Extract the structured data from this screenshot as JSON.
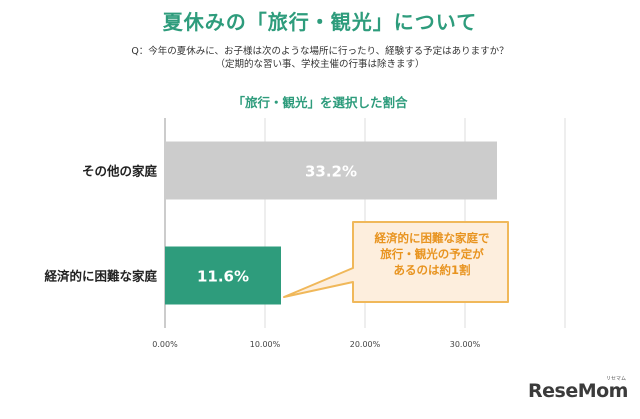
{
  "title": "夏休みの「旅行・観光」について",
  "question": {
    "line1": "Q：今年の夏休みに、お子様は次のような場所に行ったり、経験する予定はありますか？",
    "line2": "（定期的な習い事、学校主催の行事は除きます）"
  },
  "subtitle": "「旅行・観光」を選択した割合",
  "callout": {
    "line1": "経済的に困難な家庭で",
    "line2": "旅行・観光の予定が",
    "line3": "あるのは約1割"
  },
  "logo": {
    "text": "ReseMom",
    "ruby": "リセマム"
  },
  "colors": {
    "accent": "#2e9c7c",
    "other_bar": "#cccccc",
    "callout_border": "#f0b85a",
    "callout_fill": "#fdeedd",
    "callout_text": "#e89420"
  },
  "chart_data": {
    "type": "bar",
    "orientation": "horizontal",
    "categories": [
      "その他の家庭",
      "経済的に困難な家庭"
    ],
    "values": [
      33.2,
      11.6
    ],
    "value_labels": [
      "33.2%",
      "11.6%"
    ],
    "xlim": [
      0,
      40
    ],
    "x_ticks": [
      0,
      10,
      20,
      30
    ],
    "x_tick_labels": [
      "0.00%",
      "10.00%",
      "20.00%",
      "30.00%"
    ],
    "grid": true,
    "bar_colors": [
      "#cccccc",
      "#2e9c7c"
    ]
  }
}
